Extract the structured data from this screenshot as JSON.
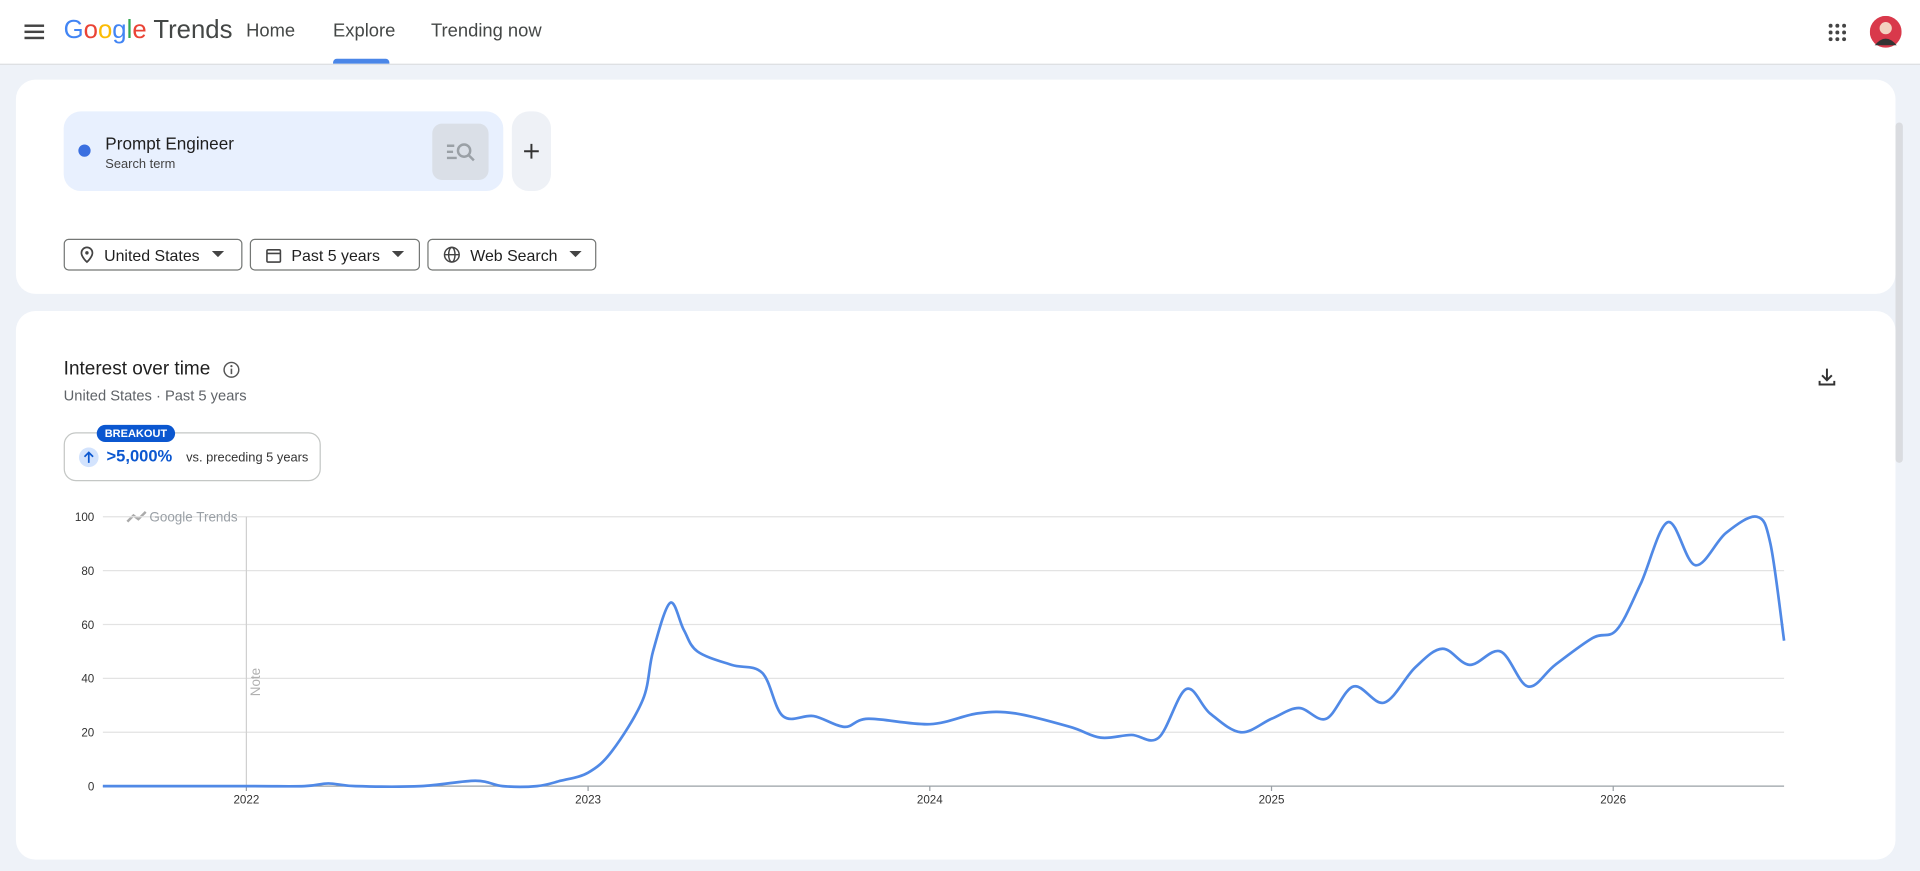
{
  "nav": {
    "brand": "Google",
    "product": "Trends",
    "tabs": [
      "Home",
      "Explore",
      "Trending now"
    ]
  },
  "search": {
    "term": "Prompt Engineer",
    "kind": "Search term"
  },
  "filters": [
    "United States",
    "Past 5 years",
    "Web Search"
  ],
  "summary": {
    "badge": "BREAKOUT",
    "change": ">5,000%",
    "comparison": "vs. preceding 5 years"
  },
  "chart_data": {
    "type": "line",
    "title": "Interest over time",
    "subtitle": "United States · Past 5 years",
    "watermark": "Google Trends",
    "annotations": [
      {
        "text": "Note",
        "x": 2022
      }
    ],
    "x": [
      2021.58,
      2022.0,
      2022.17,
      2022.24,
      2022.32,
      2022.51,
      2022.67,
      2022.75,
      2022.85,
      2022.92,
      2023.0,
      2023.07,
      2023.16,
      2023.19,
      2023.24,
      2023.28,
      2023.32,
      2023.42,
      2023.51,
      2023.57,
      2023.66,
      2023.75,
      2023.82,
      2024.0,
      2024.14,
      2024.25,
      2024.41,
      2024.5,
      2024.59,
      2024.67,
      2024.75,
      2024.82,
      2024.91,
      2025.0,
      2025.08,
      2025.16,
      2025.24,
      2025.33,
      2025.42,
      2025.5,
      2025.58,
      2025.67,
      2025.75,
      2025.83,
      2025.94,
      2026.01,
      2026.08,
      2026.16,
      2026.24,
      2026.33,
      2026.42,
      2026.46,
      2026.5
    ],
    "series": [
      {
        "name": "Prompt Engineer",
        "color": "#5089e6",
        "values": [
          0,
          0,
          0,
          1,
          0,
          0,
          2,
          0,
          0,
          2,
          5,
          13,
          32,
          50,
          68,
          58,
          50,
          45,
          42,
          26,
          26,
          22,
          25,
          23,
          27,
          27,
          22,
          18,
          19,
          18,
          36,
          27,
          20,
          25,
          29,
          25,
          37,
          31,
          44,
          51,
          45,
          50,
          37,
          45,
          55,
          58,
          75,
          98,
          82,
          94,
          100,
          90,
          54
        ]
      }
    ],
    "xlim": [
      2021.58,
      2026.5
    ],
    "ylim": [
      0,
      100
    ],
    "xticks": [
      2022,
      2023,
      2024,
      2025,
      2026
    ],
    "yticks": [
      0,
      20,
      40,
      60,
      80,
      100
    ],
    "grid": true
  }
}
